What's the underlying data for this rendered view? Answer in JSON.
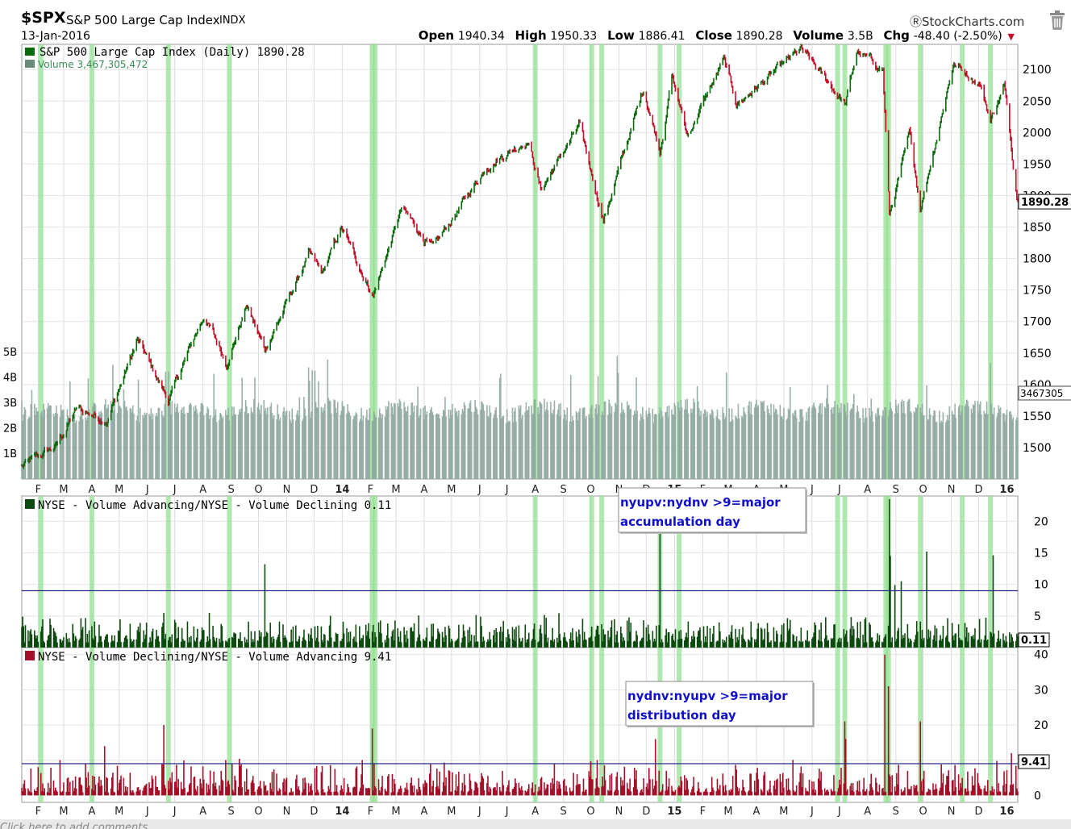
{
  "header": {
    "symbol": "$SPX",
    "name": "S&P 500 Large Cap Index",
    "exchange": "INDX",
    "date": "13-Jan-2016",
    "brand": "StockCharts.com",
    "stats": {
      "open_label": "Open",
      "open": "1940.34",
      "high_label": "High",
      "high": "1950.33",
      "low_label": "Low",
      "low": "1886.41",
      "close_label": "Close",
      "close": "1890.28",
      "volume_label": "Volume",
      "volume": "3.5B",
      "chg_label": "Chg",
      "chg": "-48.40 (-2.50%)"
    }
  },
  "footer_text": "Click here to add comments",
  "chart_data": [
    {
      "type": "candlestick",
      "legend": "S&P 500 Large Cap Index (Daily) 1890.28",
      "volume_legend": "Volume 3,467,305,472",
      "ylim": [
        1450,
        2140
      ],
      "y_ticks": [
        1500,
        1550,
        1600,
        1650,
        1700,
        1750,
        1800,
        1850,
        1900,
        1950,
        2000,
        2050,
        2100
      ],
      "volume_ticks": [
        "1B",
        "2B",
        "3B",
        "4B",
        "5B"
      ],
      "last_value_label": "1890.28",
      "last_volume_label": "3467305",
      "x_ticks": [
        "F",
        "M",
        "A",
        "M",
        "J",
        "J",
        "A",
        "S",
        "O",
        "N",
        "D",
        "14",
        "F",
        "M",
        "A",
        "M",
        "J",
        "J",
        "A",
        "S",
        "O",
        "N",
        "D",
        "15",
        "F",
        "M",
        "A",
        "M",
        "J",
        "J",
        "A",
        "S",
        "O",
        "N",
        "D",
        "16"
      ],
      "price_anchors": [
        {
          "date": "2013-01-14",
          "close": 1470
        },
        {
          "date": "2013-02-20",
          "close": 1500
        },
        {
          "date": "2013-03-15",
          "close": 1560
        },
        {
          "date": "2013-04-18",
          "close": 1545
        },
        {
          "date": "2013-05-21",
          "close": 1670
        },
        {
          "date": "2013-06-24",
          "close": 1575
        },
        {
          "date": "2013-08-02",
          "close": 1710
        },
        {
          "date": "2013-08-27",
          "close": 1635
        },
        {
          "date": "2013-09-18",
          "close": 1725
        },
        {
          "date": "2013-10-08",
          "close": 1655
        },
        {
          "date": "2013-11-25",
          "close": 1805
        },
        {
          "date": "2013-12-10",
          "close": 1775
        },
        {
          "date": "2013-12-31",
          "close": 1848
        },
        {
          "date": "2014-02-04",
          "close": 1742
        },
        {
          "date": "2014-03-07",
          "close": 1878
        },
        {
          "date": "2014-04-11",
          "close": 1815
        },
        {
          "date": "2014-06-10",
          "close": 1950
        },
        {
          "date": "2014-07-24",
          "close": 1990
        },
        {
          "date": "2014-08-07",
          "close": 1910
        },
        {
          "date": "2014-09-18",
          "close": 2010
        },
        {
          "date": "2014-10-15",
          "close": 1862
        },
        {
          "date": "2014-11-28",
          "close": 2070
        },
        {
          "date": "2014-12-16",
          "close": 1972
        },
        {
          "date": "2014-12-29",
          "close": 2090
        },
        {
          "date": "2015-01-15",
          "close": 1995
        },
        {
          "date": "2015-02-24",
          "close": 2115
        },
        {
          "date": "2015-03-10",
          "close": 2045
        },
        {
          "date": "2015-05-20",
          "close": 2130
        },
        {
          "date": "2015-07-08",
          "close": 2046
        },
        {
          "date": "2015-07-20",
          "close": 2128
        },
        {
          "date": "2015-08-18",
          "close": 2100
        },
        {
          "date": "2015-08-25",
          "close": 1868
        },
        {
          "date": "2015-09-16",
          "close": 1995
        },
        {
          "date": "2015-09-28",
          "close": 1882
        },
        {
          "date": "2015-11-03",
          "close": 2110
        },
        {
          "date": "2015-12-02",
          "close": 2080
        },
        {
          "date": "2015-12-14",
          "close": 2020
        },
        {
          "date": "2015-12-29",
          "close": 2075
        },
        {
          "date": "2016-01-13",
          "close": 1890.28
        }
      ],
      "highlight_dates": [
        "2013-02-04",
        "2013-04-01",
        "2013-06-24",
        "2013-08-30",
        "2014-02-03",
        "2014-02-06",
        "2014-08-01",
        "2014-10-02",
        "2014-10-13",
        "2014-12-16",
        "2015-01-06",
        "2015-06-29",
        "2015-07-07",
        "2015-08-21",
        "2015-08-24",
        "2015-09-28",
        "2015-11-13",
        "2015-12-14"
      ]
    },
    {
      "type": "bar",
      "legend": "NYSE - Volume Advancing/NYSE - Volume Declining 0.11",
      "ylim": [
        0,
        24
      ],
      "y_ticks": [
        5,
        10,
        15,
        20
      ],
      "threshold": 9,
      "last_value_label": "0.11",
      "spikes": [
        {
          "date": "2013-10-09",
          "value": 13.2
        },
        {
          "date": "2014-12-17",
          "value": 18.3
        },
        {
          "date": "2015-08-26",
          "value": 23.5
        },
        {
          "date": "2015-08-27",
          "value": 14.5
        },
        {
          "date": "2015-09-08",
          "value": 10.5
        },
        {
          "date": "2015-10-05",
          "value": 15.2
        },
        {
          "date": "2015-12-18",
          "value": 14.6
        },
        {
          "date": "2015-08-31",
          "value": 9.9
        }
      ],
      "annotation": "nyupv:nydnv >9=major accumulation day"
    },
    {
      "type": "bar",
      "legend": "NYSE - Volume Declining/NYSE - Volume Advancing 9.41",
      "ylim": [
        -2,
        42
      ],
      "y_ticks": [
        0,
        10,
        20,
        30,
        40
      ],
      "threshold": 9,
      "last_value_label": "9.41",
      "spikes": [
        {
          "date": "2013-02-25",
          "value": 10.0
        },
        {
          "date": "2013-04-15",
          "value": 14.0
        },
        {
          "date": "2013-06-20",
          "value": 20.0
        },
        {
          "date": "2013-08-27",
          "value": 10.0
        },
        {
          "date": "2014-01-24",
          "value": 10.0
        },
        {
          "date": "2014-02-03",
          "value": 19.0
        },
        {
          "date": "2014-10-09",
          "value": 10.0
        },
        {
          "date": "2014-12-12",
          "value": 16.0
        },
        {
          "date": "2015-07-08",
          "value": 21.0
        },
        {
          "date": "2015-07-09",
          "value": 16.0
        },
        {
          "date": "2015-08-21",
          "value": 40.0
        },
        {
          "date": "2015-08-24",
          "value": 31.0
        },
        {
          "date": "2015-09-28",
          "value": 21.0
        },
        {
          "date": "2016-01-07",
          "value": 12.0
        }
      ],
      "annotation": "nydnv:nyupv >9=major distribution day"
    }
  ]
}
